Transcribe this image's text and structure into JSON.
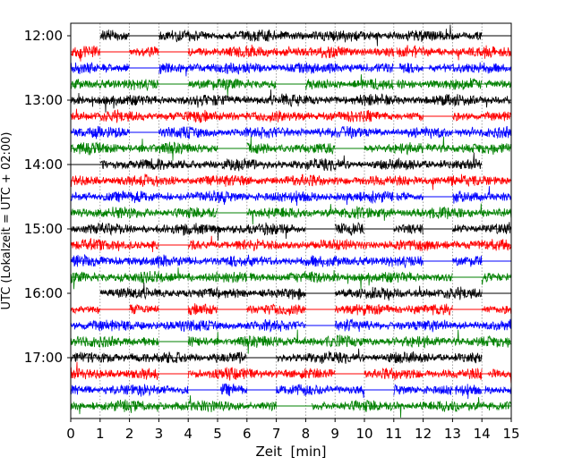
{
  "chart_data": {
    "type": "line",
    "title": "",
    "xlabel": "Zeit  [min]",
    "ylabel": "UTC (Lokalzeit = UTC + 02:00)",
    "xlim": [
      0,
      15
    ],
    "xticks": [
      "0",
      "1",
      "2",
      "3",
      "4",
      "5",
      "6",
      "7",
      "8",
      "9",
      "10",
      "11",
      "12",
      "13",
      "14",
      "15"
    ],
    "yticks": [
      "12:00",
      "13:00",
      "14:00",
      "15:00",
      "16:00",
      "17:00"
    ],
    "grid": true,
    "row_minutes": 15,
    "colors": [
      "#000000",
      "#ff0000",
      "#0000ff",
      "#008000"
    ],
    "rows": [
      {
        "start": "12:00",
        "active": [
          [
            1,
            2
          ],
          [
            3,
            14
          ]
        ],
        "line": [
          1,
          15
        ]
      },
      {
        "start": "12:15",
        "active": [
          [
            0,
            1
          ],
          [
            2,
            3
          ],
          [
            4,
            11
          ],
          [
            11.1,
            15
          ]
        ],
        "line": [
          0,
          15
        ]
      },
      {
        "start": "12:30",
        "active": [
          [
            0,
            2
          ],
          [
            3,
            11
          ],
          [
            11.2,
            12
          ],
          [
            12.2,
            15
          ]
        ],
        "line": [
          0,
          15
        ]
      },
      {
        "start": "12:45",
        "active": [
          [
            0,
            3
          ],
          [
            4,
            7
          ],
          [
            8,
            11
          ],
          [
            11.1,
            14
          ],
          [
            14.1,
            15
          ]
        ],
        "line": [
          0,
          15
        ]
      },
      {
        "start": "13:00",
        "active": [
          [
            0,
            15
          ]
        ],
        "line": [
          0,
          15
        ]
      },
      {
        "start": "13:15",
        "active": [
          [
            0,
            12
          ],
          [
            13,
            15
          ]
        ],
        "line": [
          0,
          15
        ]
      },
      {
        "start": "13:30",
        "active": [
          [
            0,
            2
          ],
          [
            3,
            13
          ],
          [
            13.1,
            15
          ]
        ],
        "line": [
          0,
          15
        ]
      },
      {
        "start": "13:45",
        "active": [
          [
            0,
            5
          ],
          [
            6,
            9
          ],
          [
            10,
            12
          ],
          [
            12.1,
            15
          ]
        ],
        "line": [
          0,
          15
        ]
      },
      {
        "start": "14:00",
        "active": [
          [
            1,
            14
          ]
        ],
        "line": [
          0,
          14
        ]
      },
      {
        "start": "14:15",
        "active": [
          [
            0,
            15
          ]
        ],
        "line": [
          0,
          15
        ]
      },
      {
        "start": "14:30",
        "active": [
          [
            0,
            11
          ],
          [
            11.1,
            12
          ],
          [
            13,
            15
          ]
        ],
        "line": [
          0,
          15
        ]
      },
      {
        "start": "14:45",
        "active": [
          [
            0,
            5
          ],
          [
            6,
            15
          ]
        ],
        "line": [
          0,
          15
        ]
      },
      {
        "start": "15:00",
        "active": [
          [
            0,
            8
          ],
          [
            9,
            10
          ],
          [
            11,
            12
          ],
          [
            13,
            15
          ]
        ],
        "line": [
          0,
          15
        ]
      },
      {
        "start": "15:15",
        "active": [
          [
            0,
            3
          ],
          [
            4,
            15
          ]
        ],
        "line": [
          0,
          15
        ]
      },
      {
        "start": "15:30",
        "active": [
          [
            0,
            12
          ],
          [
            13,
            14
          ]
        ],
        "line": [
          0,
          15
        ]
      },
      {
        "start": "15:45",
        "active": [
          [
            0,
            6
          ],
          [
            6.1,
            13
          ],
          [
            14,
            15
          ]
        ],
        "line": [
          0,
          15
        ]
      },
      {
        "start": "16:00",
        "active": [
          [
            1,
            8
          ],
          [
            9,
            14
          ]
        ],
        "line": [
          1,
          15
        ]
      },
      {
        "start": "16:15",
        "active": [
          [
            0,
            1
          ],
          [
            2,
            3
          ],
          [
            4,
            5
          ],
          [
            6,
            8
          ],
          [
            9,
            13
          ],
          [
            14,
            15
          ]
        ],
        "line": [
          0,
          15
        ]
      },
      {
        "start": "16:30",
        "active": [
          [
            0,
            8
          ],
          [
            9,
            15
          ]
        ],
        "line": [
          0,
          15
        ]
      },
      {
        "start": "16:45",
        "active": [
          [
            0,
            3
          ],
          [
            4,
            15
          ]
        ],
        "line": [
          0,
          15
        ]
      },
      {
        "start": "17:00",
        "active": [
          [
            0,
            6
          ],
          [
            7,
            14
          ]
        ],
        "line": [
          0,
          14
        ]
      },
      {
        "start": "17:15",
        "active": [
          [
            0,
            3
          ],
          [
            4,
            9
          ],
          [
            10,
            14
          ],
          [
            14.2,
            15
          ]
        ],
        "line": [
          0,
          15
        ]
      },
      {
        "start": "17:30",
        "active": [
          [
            0,
            4
          ],
          [
            5.1,
            6
          ],
          [
            7,
            10
          ],
          [
            11,
            13
          ],
          [
            13.1,
            14
          ],
          [
            14.1,
            15
          ]
        ],
        "line": [
          0,
          15
        ]
      },
      {
        "start": "17:45",
        "active": [
          [
            0,
            7
          ],
          [
            8.2,
            15
          ]
        ],
        "line": [
          0,
          15
        ]
      }
    ]
  }
}
